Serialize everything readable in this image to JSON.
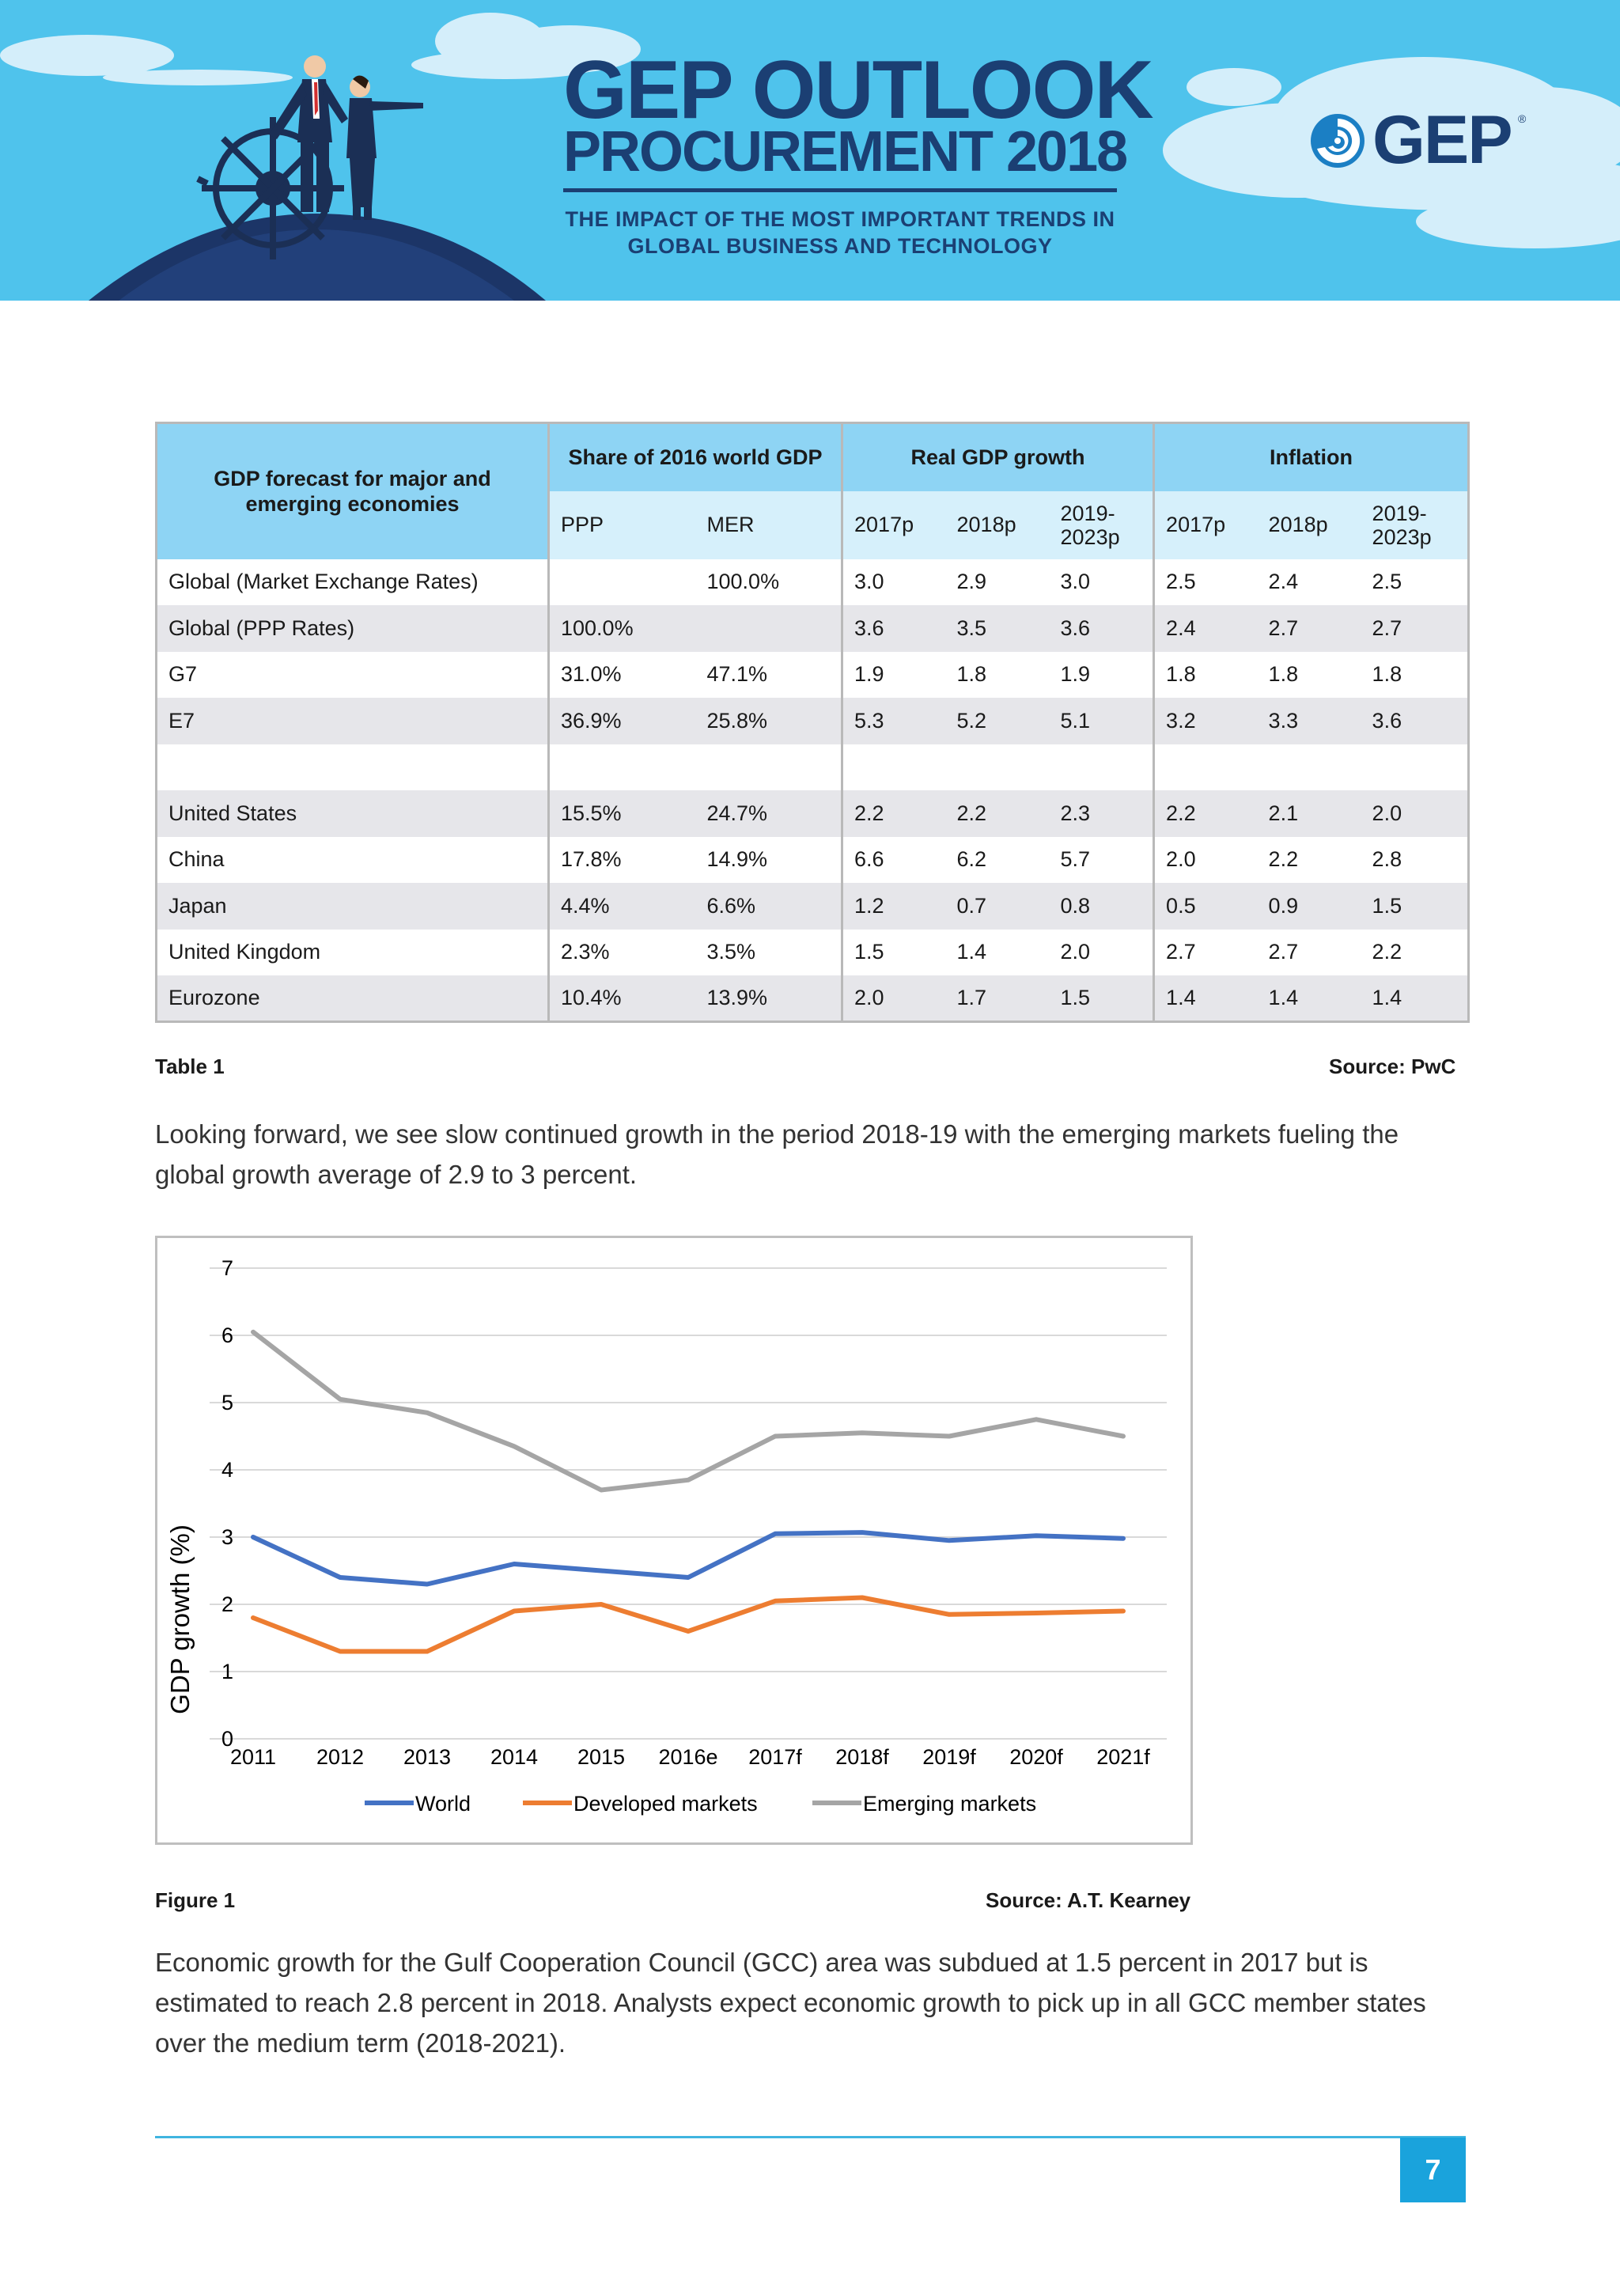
{
  "banner": {
    "title_line1": "GEP OUTLOOK",
    "title_line2": "PROCUREMENT 2018",
    "subtitle_line1": "THE IMPACT OF THE MOST IMPORTANT TRENDS IN",
    "subtitle_line2": "GLOBAL BUSINESS AND TECHNOLOGY",
    "logo_text": "GEP",
    "logo_reg": "®",
    "colors": {
      "sky": "#4fc3ec",
      "navy": "#1b3f73",
      "cloud": "#d4eefa"
    },
    "illustration_icon": "businesspeople-at-ship-wheel-illustration",
    "logo_icon": "gep-swirl-logo-icon"
  },
  "table": {
    "corner_label": "GDP forecast for major and emerging economies",
    "groups": [
      "Share of 2016 world GDP",
      "Real GDP growth",
      "Inflation"
    ],
    "subheaders": [
      "PPP",
      "MER",
      "2017p",
      "2018p",
      "2019-2023p",
      "2017p",
      "2018p",
      "2019-2023p"
    ],
    "rows": [
      {
        "label": "Global (Market Exchange Rates)",
        "cells": [
          "",
          "100.0%",
          "3.0",
          "2.9",
          "3.0",
          "2.5",
          "2.4",
          "2.5"
        ]
      },
      {
        "label": "Global (PPP Rates)",
        "cells": [
          "100.0%",
          "",
          "3.6",
          "3.5",
          "3.6",
          "2.4",
          "2.7",
          "2.7"
        ]
      },
      {
        "label": "G7",
        "cells": [
          "31.0%",
          "47.1%",
          "1.9",
          "1.8",
          "1.9",
          "1.8",
          "1.8",
          "1.8"
        ]
      },
      {
        "label": "E7",
        "cells": [
          "36.9%",
          "25.8%",
          "5.3",
          "5.2",
          "5.1",
          "3.2",
          "3.3",
          "3.6"
        ]
      },
      {
        "label": "",
        "cells": [
          "",
          "",
          "",
          "",
          "",
          "",
          "",
          ""
        ]
      },
      {
        "label": "United States",
        "cells": [
          "15.5%",
          "24.7%",
          "2.2",
          "2.2",
          "2.3",
          "2.2",
          "2.1",
          "2.0"
        ]
      },
      {
        "label": "China",
        "cells": [
          "17.8%",
          "14.9%",
          "6.6",
          "6.2",
          "5.7",
          "2.0",
          "2.2",
          "2.8"
        ]
      },
      {
        "label": "Japan",
        "cells": [
          "4.4%",
          "6.6%",
          "1.2",
          "0.7",
          "0.8",
          "0.5",
          "0.9",
          "1.5"
        ]
      },
      {
        "label": "United Kingdom",
        "cells": [
          "2.3%",
          "3.5%",
          "1.5",
          "1.4",
          "2.0",
          "2.7",
          "2.7",
          "2.2"
        ]
      },
      {
        "label": "Eurozone",
        "cells": [
          "10.4%",
          "13.9%",
          "2.0",
          "1.7",
          "1.5",
          "1.4",
          "1.4",
          "1.4"
        ]
      }
    ],
    "caption": "Table 1",
    "source": "Source: PwC",
    "colors": {
      "header_dark": "#8ed4f4",
      "header_light": "#d6f0fb",
      "row_alt": "#e6e6ea"
    }
  },
  "paragraph1": {
    "line1": "Looking forward, we see slow continued growth in the period 2018-19 with the emerging markets fueling the",
    "line2": "global growth average of 2.9 to 3 percent."
  },
  "chart_data": {
    "type": "line",
    "title": "",
    "xlabel": "",
    "ylabel": "GDP growth (%)",
    "ylim": [
      0,
      7
    ],
    "yticks": [
      0,
      1,
      2,
      3,
      4,
      5,
      6,
      7
    ],
    "grid": true,
    "legend": "bottom",
    "categories": [
      "2011",
      "2012",
      "2013",
      "2014",
      "2015",
      "2016e",
      "2017f",
      "2018f",
      "2019f",
      "2020f",
      "2021f"
    ],
    "series": [
      {
        "name": "World",
        "color": "#4472c4",
        "values": [
          3.0,
          2.4,
          2.3,
          2.6,
          2.5,
          2.4,
          3.05,
          3.07,
          2.95,
          3.02,
          2.98
        ]
      },
      {
        "name": "Developed markets",
        "color": "#ed7d31",
        "values": [
          1.8,
          1.3,
          1.3,
          1.9,
          2.0,
          1.6,
          2.05,
          2.1,
          1.85,
          1.87,
          1.9
        ]
      },
      {
        "name": "Emerging markets",
        "color": "#a5a5a5",
        "values": [
          6.05,
          5.05,
          4.85,
          4.35,
          3.7,
          3.85,
          4.5,
          4.55,
          4.5,
          4.75,
          4.5
        ]
      }
    ]
  },
  "figure": {
    "caption": "Figure 1",
    "source": "Source: A.T. Kearney"
  },
  "paragraph2": {
    "line1": "Economic growth for the Gulf Cooperation Council (GCC) area was subdued at 1.5 percent in 2017 but is",
    "line2": "estimated to reach 2.8 percent in 2018. Analysts expect economic growth to pick up in all GCC member states",
    "line3": "over the medium term (2018-2021)."
  },
  "footer": {
    "page_number": "7"
  }
}
